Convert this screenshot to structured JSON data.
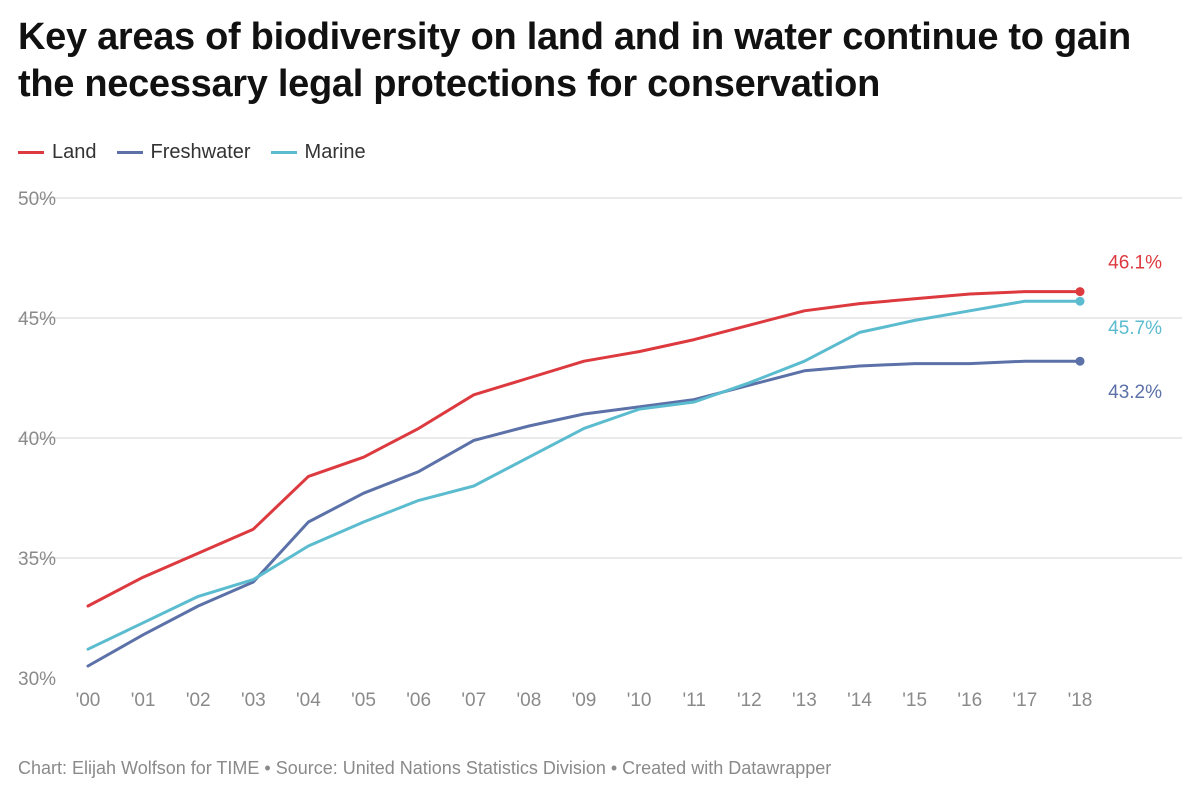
{
  "chart_data": {
    "type": "line",
    "title": "Key areas of biodiversity on land and in water continue to gain the necessary legal protections for conservation",
    "xlabel": "",
    "ylabel": "",
    "categories": [
      "'00",
      "'01",
      "'02",
      "'03",
      "'04",
      "'05",
      "'06",
      "'07",
      "'08",
      "'09",
      "'10",
      "'11",
      "'12",
      "'13",
      "'14",
      "'15",
      "'16",
      "'17",
      "'18"
    ],
    "ylim": [
      30,
      50
    ],
    "yticks": [
      30,
      35,
      40,
      45,
      50
    ],
    "ytick_labels": [
      "30%",
      "35%",
      "40%",
      "45%",
      "50%"
    ],
    "grid": true,
    "legend_position": "top-left",
    "series": [
      {
        "name": "Land",
        "color": "#dc3a3f",
        "values": [
          33.0,
          34.2,
          35.2,
          36.2,
          38.4,
          39.2,
          40.4,
          41.8,
          42.5,
          43.2,
          43.6,
          44.1,
          44.7,
          45.3,
          45.6,
          45.8,
          46.0,
          46.1,
          46.1
        ],
        "end_label": "46.1%"
      },
      {
        "name": "Freshwater",
        "color": "#5b71a8",
        "values": [
          30.5,
          31.8,
          33.0,
          34.0,
          36.5,
          37.7,
          38.6,
          39.9,
          40.5,
          41.0,
          41.3,
          41.6,
          42.2,
          42.8,
          43.0,
          43.1,
          43.1,
          43.2,
          43.2
        ],
        "end_label": "43.2%"
      },
      {
        "name": "Marine",
        "color": "#5cbccf",
        "values": [
          31.2,
          32.3,
          33.4,
          34.1,
          35.5,
          36.5,
          37.4,
          38.0,
          39.2,
          40.4,
          41.2,
          41.5,
          42.3,
          43.2,
          44.4,
          44.9,
          45.3,
          45.7,
          45.7
        ],
        "end_label": "45.7%"
      }
    ]
  },
  "footer": {
    "credit": "Chart: Elijah Wolfson for TIME • Source: United Nations Statistics Division • Created with Datawrapper"
  },
  "colors": {
    "gridline": "#dedede",
    "tick_text": "#8a8a8a"
  }
}
